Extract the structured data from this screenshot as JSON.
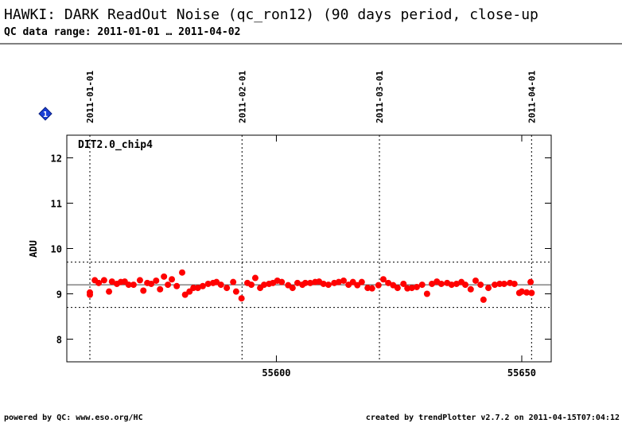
{
  "chart_data": {
    "type": "scatter",
    "title": "HAWKI: DARK ReadOut Noise (qc_ron12) (90 days period, close-up",
    "subtitle": "QC data range: 2011-01-01 … 2011-04-02",
    "ylabel": "ADU",
    "marker_label": "1",
    "footer_left": "powered by QC: www.eso.org/HC",
    "footer_right": "created by trendPlotter v2.7.2 on 2011-04-15T07:04:12",
    "xlim": [
      55557.3,
      55656
    ],
    "xticks": [
      55600,
      55650
    ],
    "ylim": [
      7.5,
      12.5
    ],
    "yticks": [
      8,
      9,
      10,
      11,
      12
    ],
    "hlines": [
      {
        "value": 9.2,
        "style": "solid"
      },
      {
        "value": 9.7,
        "style": "dotted"
      },
      {
        "value": 8.7,
        "style": "dotted"
      }
    ],
    "vlines": [
      {
        "value": 55562,
        "label": "2011-01-01"
      },
      {
        "value": 55593,
        "label": "2011-02-01"
      },
      {
        "value": 55621,
        "label": "2011-03-01"
      },
      {
        "value": 55652,
        "label": "2011-04-01"
      }
    ],
    "x": [
      55562.0,
      55562.0,
      55563.0,
      55563.8,
      55564.9,
      55565.9,
      55566.5,
      55567.5,
      55568.3,
      55569.1,
      55569.9,
      55570.9,
      55572.2,
      55572.9,
      55573.7,
      55574.5,
      55575.5,
      55576.3,
      55577.1,
      55577.9,
      55578.7,
      55579.7,
      55580.8,
      55581.4,
      55582.3,
      55583.1,
      55584.0,
      55585.0,
      55586.1,
      55587.1,
      55587.8,
      55588.7,
      55589.9,
      55591.2,
      55591.8,
      55592.9,
      55594.1,
      55594.9,
      55595.7,
      55596.7,
      55597.5,
      55598.5,
      55599.3,
      55600.2,
      55601.1,
      55602.4,
      55603.3,
      55604.3,
      55605.3,
      55605.9,
      55606.9,
      55607.9,
      55608.7,
      55609.6,
      55610.6,
      55611.8,
      55612.7,
      55613.7,
      55614.7,
      55615.6,
      55616.5,
      55617.4,
      55618.6,
      55619.5,
      55620.8,
      55621.8,
      55622.8,
      55623.8,
      55624.7,
      55625.9,
      55626.7,
      55627.6,
      55628.6,
      55629.7,
      55630.7,
      55631.7,
      55632.7,
      55633.6,
      55634.8,
      55635.7,
      55636.7,
      55637.7,
      55638.5,
      55639.6,
      55640.6,
      55641.6,
      55642.2,
      55643.2,
      55644.5,
      55645.5,
      55646.4,
      55647.6,
      55648.5,
      55649.5,
      55650.0,
      55651.0,
      55651.8,
      55652.0
    ],
    "series": [
      {
        "name": "DIT2.0_chip4",
        "color": "#ff0000",
        "values": [
          9.03,
          8.98,
          9.3,
          9.24,
          9.3,
          9.05,
          9.27,
          9.22,
          9.26,
          9.27,
          9.2,
          9.2,
          9.3,
          9.07,
          9.24,
          9.22,
          9.29,
          9.1,
          9.38,
          9.2,
          9.32,
          9.17,
          9.47,
          8.98,
          9.05,
          9.13,
          9.13,
          9.17,
          9.22,
          9.24,
          9.26,
          9.2,
          9.13,
          9.26,
          9.05,
          8.9,
          9.24,
          9.2,
          9.35,
          9.13,
          9.2,
          9.22,
          9.24,
          9.29,
          9.26,
          9.19,
          9.13,
          9.24,
          9.2,
          9.24,
          9.24,
          9.26,
          9.27,
          9.22,
          9.2,
          9.24,
          9.26,
          9.29,
          9.2,
          9.26,
          9.19,
          9.26,
          9.13,
          9.12,
          9.19,
          9.32,
          9.24,
          9.19,
          9.13,
          9.22,
          9.12,
          9.13,
          9.15,
          9.2,
          9.0,
          9.22,
          9.27,
          9.22,
          9.24,
          9.2,
          9.22,
          9.26,
          9.2,
          9.1,
          9.29,
          9.2,
          8.87,
          9.13,
          9.2,
          9.22,
          9.22,
          9.24,
          9.22,
          9.02,
          9.05,
          9.03,
          9.26,
          9.02
        ]
      }
    ]
  }
}
